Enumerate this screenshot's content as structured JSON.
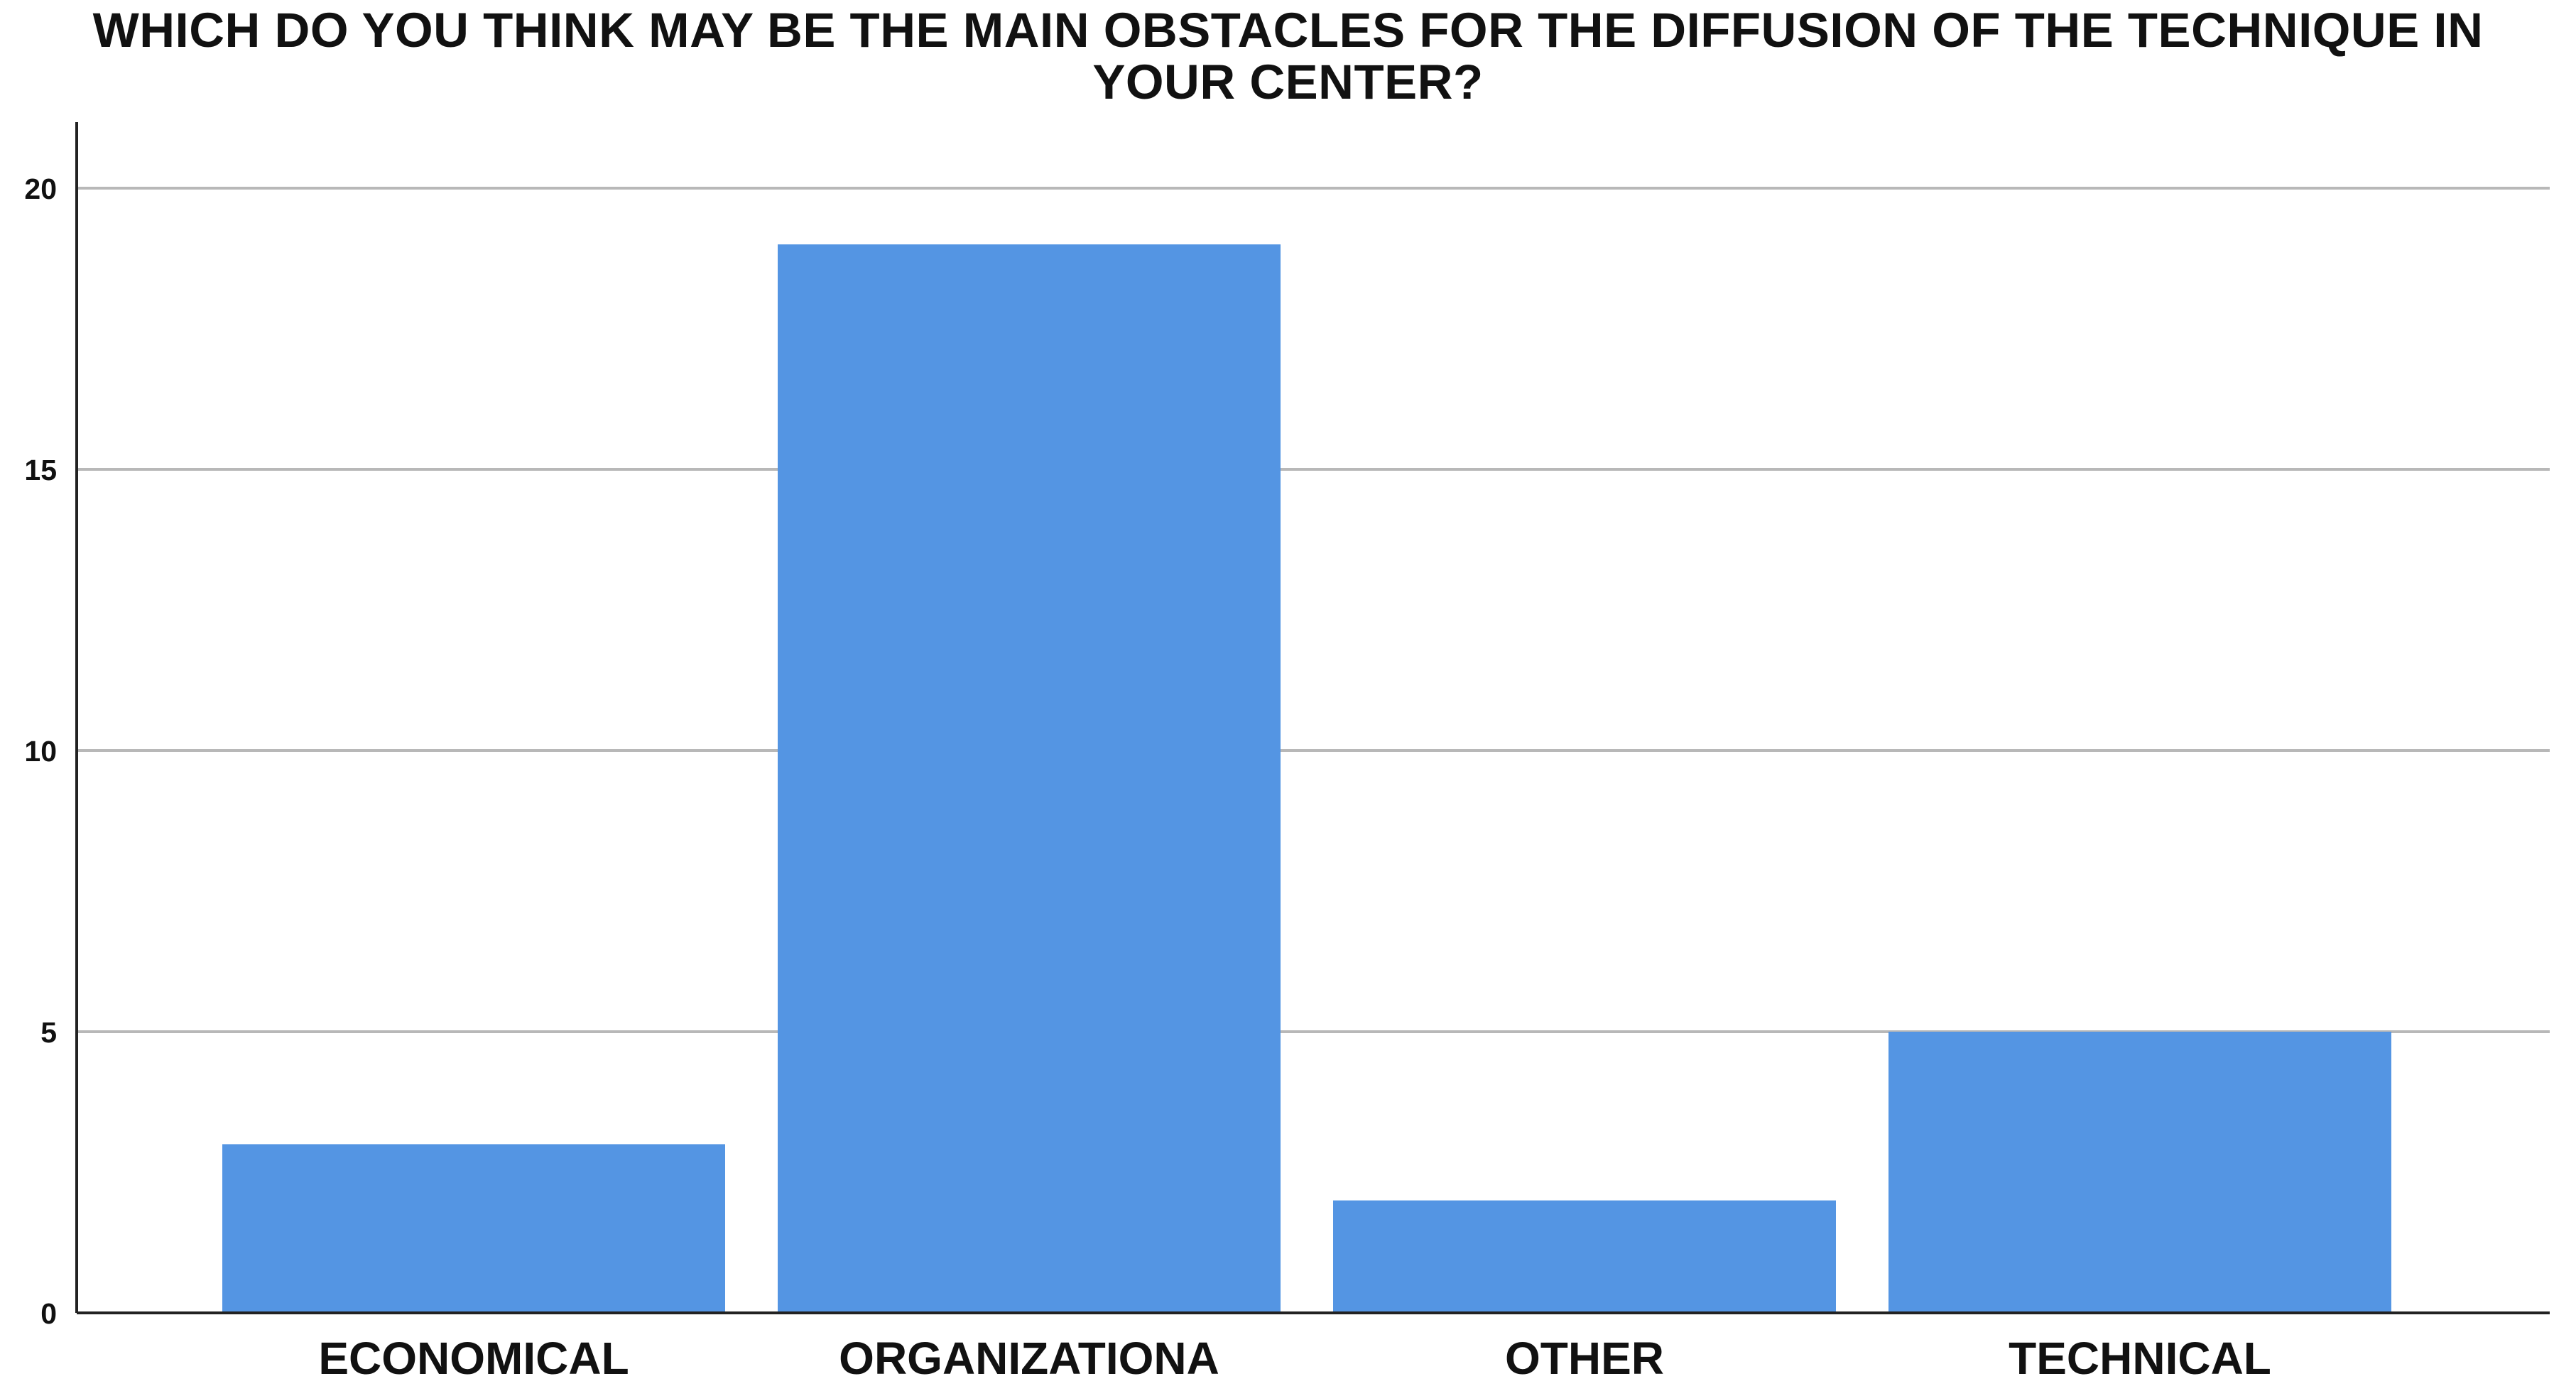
{
  "chart_data": {
    "type": "bar",
    "title": "WHICH DO YOU THINK MAY BE THE MAIN OBSTACLES FOR THE DIFFUSION OF THE TECHNIQUE IN YOUR CENTER?",
    "title_lines": [
      "WHICH DO YOU THINK MAY BE THE MAIN OBSTACLES FOR THE DIFFUSION OF THE TECHNIQUE IN",
      "YOUR CENTER?"
    ],
    "categories": [
      "ECONOMICAL",
      "ORGANIZATIONA",
      "OTHER",
      "TECHNICAL"
    ],
    "values": [
      3,
      19,
      2,
      5
    ],
    "xlabel": "",
    "ylabel": "",
    "ylim": [
      0,
      21
    ],
    "yticks": [
      0,
      5,
      10,
      15,
      20
    ],
    "grid": true,
    "bar_color": "#5495E3",
    "grid_color": "#B8B8B8",
    "axis_color": "#222222"
  }
}
